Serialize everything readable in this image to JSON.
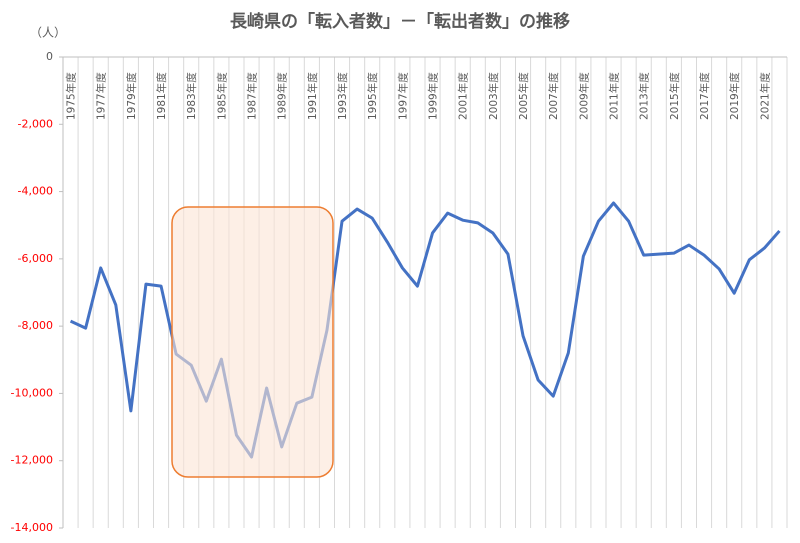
{
  "chart_data": {
    "type": "line",
    "title": "長崎県の「転入者数」－「転出者数」の推移",
    "y_label": "（人）",
    "categories": [
      "1975年度",
      null,
      "1977年度",
      null,
      "1979年度",
      null,
      "1981年度",
      null,
      "1983年度",
      null,
      "1985年度",
      null,
      "1987年度",
      null,
      "1989年度",
      null,
      "1991年度",
      null,
      "1993年度",
      null,
      "1995年度",
      null,
      "1997年度",
      null,
      "1999年度",
      null,
      "2001年度",
      null,
      "2003年度",
      null,
      "2005年度",
      null,
      "2007年度",
      null,
      "2009年度",
      null,
      "2011年度",
      null,
      "2013年度",
      null,
      "2015年度",
      null,
      "2017年度",
      null,
      "2019年度",
      null,
      "2021年度",
      null
    ],
    "series": [
      {
        "color": "#4472c4",
        "values": [
          -7850,
          -8060,
          -6270,
          -7370,
          -10520,
          -6750,
          -6810,
          -8830,
          -9160,
          -10230,
          -8980,
          -11240,
          -11890,
          -9840,
          -11590,
          -10290,
          -10110,
          -8120,
          -4880,
          -4520,
          -4790,
          -5500,
          -6270,
          -6810,
          -5230,
          -4640,
          -4850,
          -4930,
          -5230,
          -5860,
          -8290,
          -9600,
          -10080,
          -8800,
          -5920,
          -4880,
          -4340,
          -4880,
          -5890,
          -5860,
          -5830,
          -5590,
          -5890,
          -6300,
          -7020,
          -6030,
          -5680,
          -5170
        ]
      }
    ],
    "ylim": [
      -14000,
      0
    ],
    "yticks": [
      0,
      {
        "value": -2000,
        "label": "-2,000"
      },
      {
        "value": -4000,
        "label": "-4,000"
      },
      {
        "value": -6000,
        "label": "-6,000"
      },
      {
        "value": -8000,
        "label": "-8,000"
      },
      {
        "value": -10000,
        "label": "-10,000"
      },
      {
        "value": -12000,
        "label": "-12,000"
      },
      {
        "value": -14000,
        "label": "-14,000"
      }
    ],
    "grid": true
  }
}
